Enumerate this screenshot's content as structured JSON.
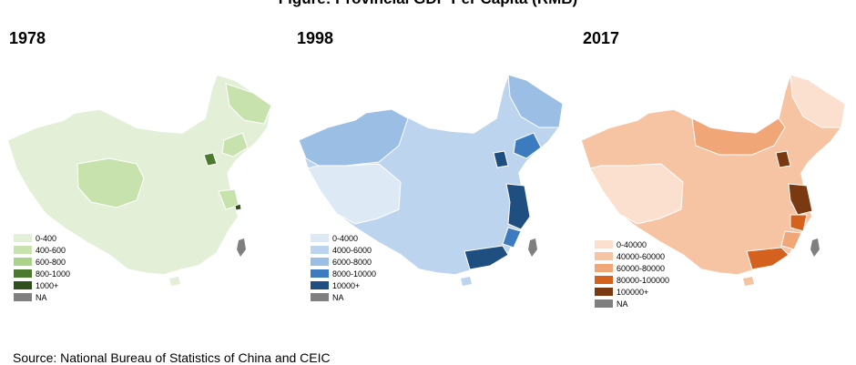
{
  "title": "Figure: Provincial GDP Per Capita (RMB)",
  "source": "Source: National Bureau of Statistics of China and CEIC",
  "panels": [
    {
      "year": "1978",
      "legend": [
        "0-400",
        "400-600",
        "600-800",
        "800-1000",
        "1000+",
        "NA"
      ],
      "colors": [
        "#e3f0d7",
        "#c7e2ad",
        "#a9d388",
        "#4b7a2e",
        "#2f4f1c",
        "#7f7f7f"
      ]
    },
    {
      "year": "1998",
      "legend": [
        "0-4000",
        "4000-6000",
        "6000-8000",
        "8000-10000",
        "10000+",
        "NA"
      ],
      "colors": [
        "#dde9f5",
        "#bcd4ee",
        "#9bbfe4",
        "#3c7bbf",
        "#1f4e80",
        "#7f7f7f"
      ]
    },
    {
      "year": "2017",
      "legend": [
        "0-40000",
        "40000-60000",
        "60000-80000",
        "80000-100000",
        "100000+",
        "NA"
      ],
      "colors": [
        "#fbe0cf",
        "#f6c3a3",
        "#f1a678",
        "#d4621e",
        "#7a3910",
        "#7f7f7f"
      ]
    }
  ]
}
